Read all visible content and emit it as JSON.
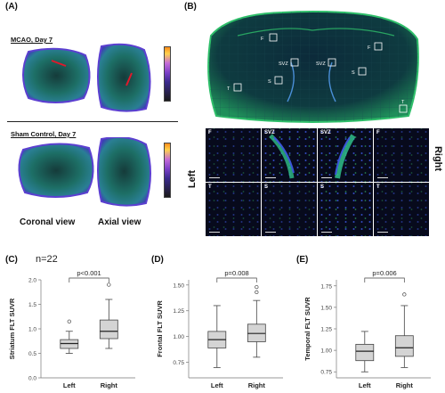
{
  "panel_a": {
    "label": "(A)",
    "mcao_title": "MCAO, Day 7",
    "sham_title": "Sham Control, Day 7",
    "coronal_label": "Coronal view",
    "axial_label": "Axial view"
  },
  "panel_b": {
    "label": "(B)",
    "left_label": "Left",
    "right_label": "Right",
    "roi_labels": [
      "F",
      "F",
      "SVZ",
      "SVZ",
      "S",
      "S",
      "T",
      "T"
    ],
    "tile_labels_top": [
      "F",
      "SVZ",
      "SVZ",
      "F"
    ],
    "tile_labels_bottom": [
      "T",
      "S",
      "S",
      "T"
    ]
  },
  "panel_c_note": "n=22",
  "chart_data": [
    {
      "type": "box",
      "panel": "(C)",
      "ylabel": "Striatum FLT SUVR",
      "categories": [
        "Left",
        "Right"
      ],
      "ylim": [
        0.0,
        2.0
      ],
      "yticks": [
        "0.0",
        "0.5",
        "1.0",
        "1.5",
        "2.0"
      ],
      "pvalue": "p<0.001",
      "boxes": [
        {
          "name": "Left",
          "whisker_low": 0.5,
          "q1": 0.6,
          "median": 0.7,
          "q3": 0.78,
          "whisker_high": 0.95,
          "outliers": [
            1.15
          ]
        },
        {
          "name": "Right",
          "whisker_low": 0.6,
          "q1": 0.8,
          "median": 0.95,
          "q3": 1.18,
          "whisker_high": 1.6,
          "outliers": [
            1.9
          ]
        }
      ]
    },
    {
      "type": "box",
      "panel": "(D)",
      "ylabel": "Frontal FLT SUVR",
      "categories": [
        "Left",
        "Right"
      ],
      "ylim": [
        0.6,
        1.55
      ],
      "yticks": [
        "0.75",
        "1.00",
        "1.25",
        "1.50"
      ],
      "pvalue": "p=0.008",
      "boxes": [
        {
          "name": "Left",
          "whisker_low": 0.7,
          "q1": 0.89,
          "median": 0.97,
          "q3": 1.05,
          "whisker_high": 1.3,
          "outliers": []
        },
        {
          "name": "Right",
          "whisker_low": 0.8,
          "q1": 0.95,
          "median": 1.03,
          "q3": 1.12,
          "whisker_high": 1.35,
          "outliers": [
            1.43,
            1.48
          ]
        }
      ]
    },
    {
      "type": "box",
      "panel": "(E)",
      "ylabel": "Temporal FLT SUVR",
      "categories": [
        "Left",
        "Right"
      ],
      "ylim": [
        0.68,
        1.82
      ],
      "yticks": [
        "0.75",
        "1.00",
        "1.25",
        "1.50",
        "1.75"
      ],
      "pvalue": "p=0.006",
      "boxes": [
        {
          "name": "Left",
          "whisker_low": 0.75,
          "q1": 0.88,
          "median": 0.99,
          "q3": 1.07,
          "whisker_high": 1.22,
          "outliers": []
        },
        {
          "name": "Right",
          "whisker_low": 0.8,
          "q1": 0.93,
          "median": 1.03,
          "q3": 1.17,
          "whisker_high": 1.52,
          "outliers": [
            1.65
          ]
        }
      ]
    }
  ]
}
